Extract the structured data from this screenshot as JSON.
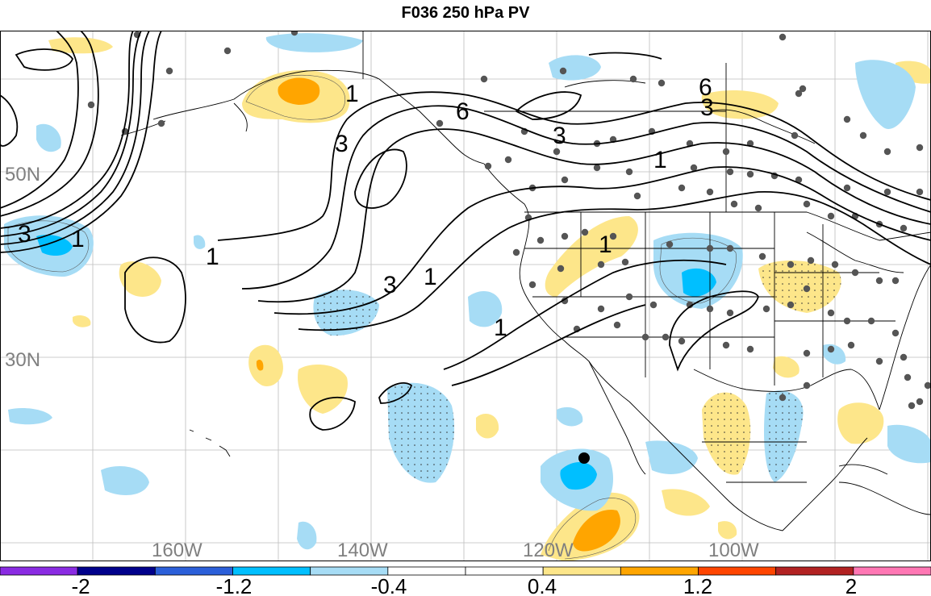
{
  "title": "F036 250 hPa PV",
  "latitude_labels": [
    "50N",
    "30N"
  ],
  "longitude_labels": [
    "160W",
    "140W",
    "120W",
    "100W"
  ],
  "contour_labels": [
    "1",
    "3",
    "6"
  ],
  "colorbar": {
    "tick_labels": [
      "-2",
      "-1.2",
      "-0.4",
      "0.4",
      "1.2",
      "2"
    ],
    "colors": [
      "#8a2be2",
      "#00008b",
      "#2b5fd9",
      "#00bfff",
      "#a6dcf5",
      "#ffffff",
      "#ffffff",
      "#fde68a",
      "#ffa500",
      "#ff4500",
      "#b22222",
      "#ff77b4"
    ]
  },
  "map": {
    "land_stations_color": "#555555",
    "positive_fill": "#fde68a",
    "positive_strong_fill": "#ffa500",
    "negative_fill": "#a6dcf5",
    "negative_strong_fill": "#00bfff",
    "marker_color": "#000000"
  }
}
